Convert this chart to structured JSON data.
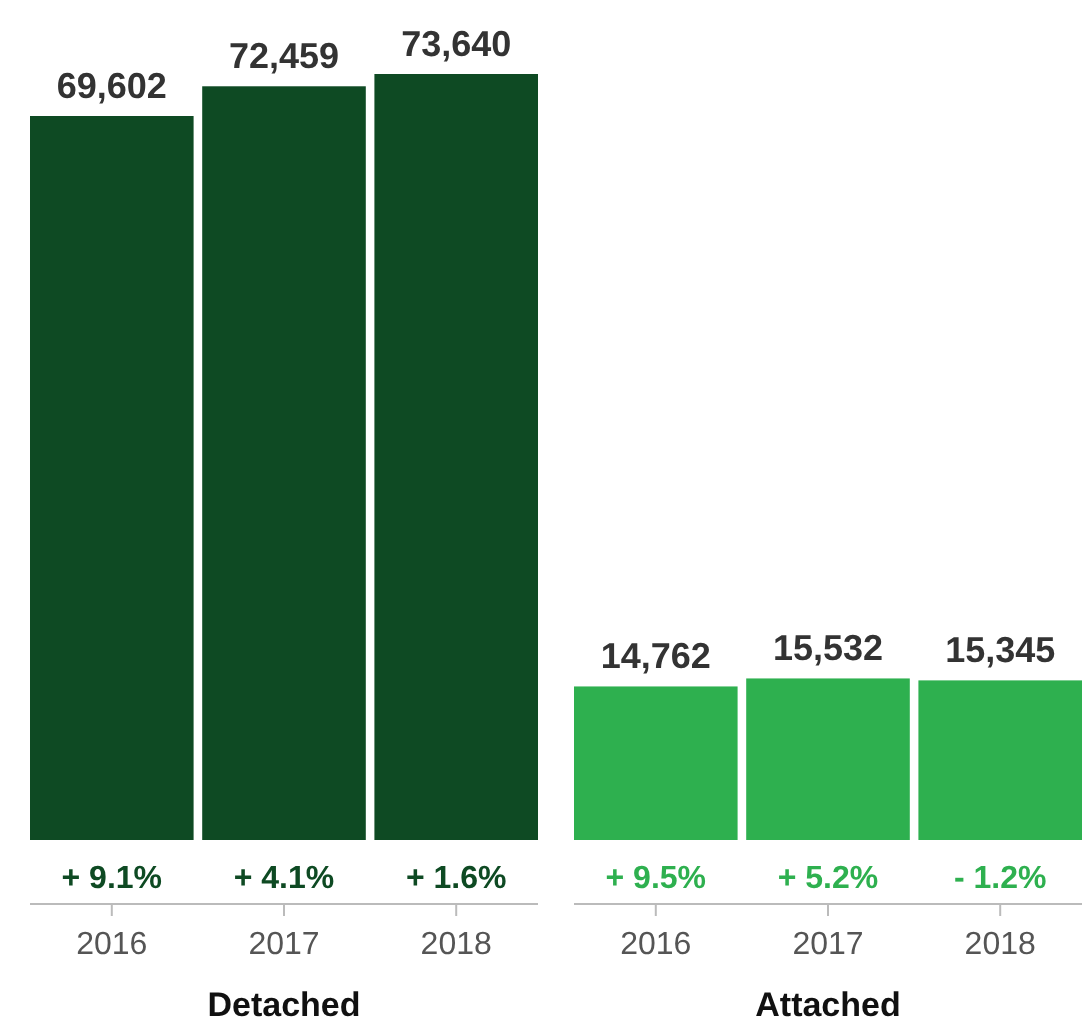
{
  "chart_data": [
    {
      "type": "bar",
      "xlabel": "Detached",
      "categories": [
        "2016",
        "2017",
        "2018"
      ],
      "values": [
        69602,
        72459,
        73640
      ],
      "color": "#0e4a23",
      "value_labels": [
        "69,602",
        "72,459",
        "73,640"
      ],
      "annotations": [
        {
          "text": "+ 9.1%",
          "x": "2016",
          "y": 0
        },
        {
          "text": "+ 4.1%",
          "x": "2017",
          "y": 0
        },
        {
          "text": "+ 1.6%",
          "x": "2018",
          "y": 0
        }
      ]
    },
    {
      "type": "bar",
      "xlabel": "Attached",
      "categories": [
        "2016",
        "2017",
        "2018"
      ],
      "values": [
        14762,
        15532,
        15345
      ],
      "color": "#2eb04f",
      "value_labels": [
        "14,762",
        "15,532",
        "15,345"
      ],
      "annotations": [
        {
          "text": "+ 9.5%",
          "x": "2016",
          "y": 0
        },
        {
          "text": "+ 5.2%",
          "x": "2017",
          "y": 0
        },
        {
          "text": "- 1.2%",
          "x": "2018",
          "y": 0
        }
      ]
    }
  ]
}
